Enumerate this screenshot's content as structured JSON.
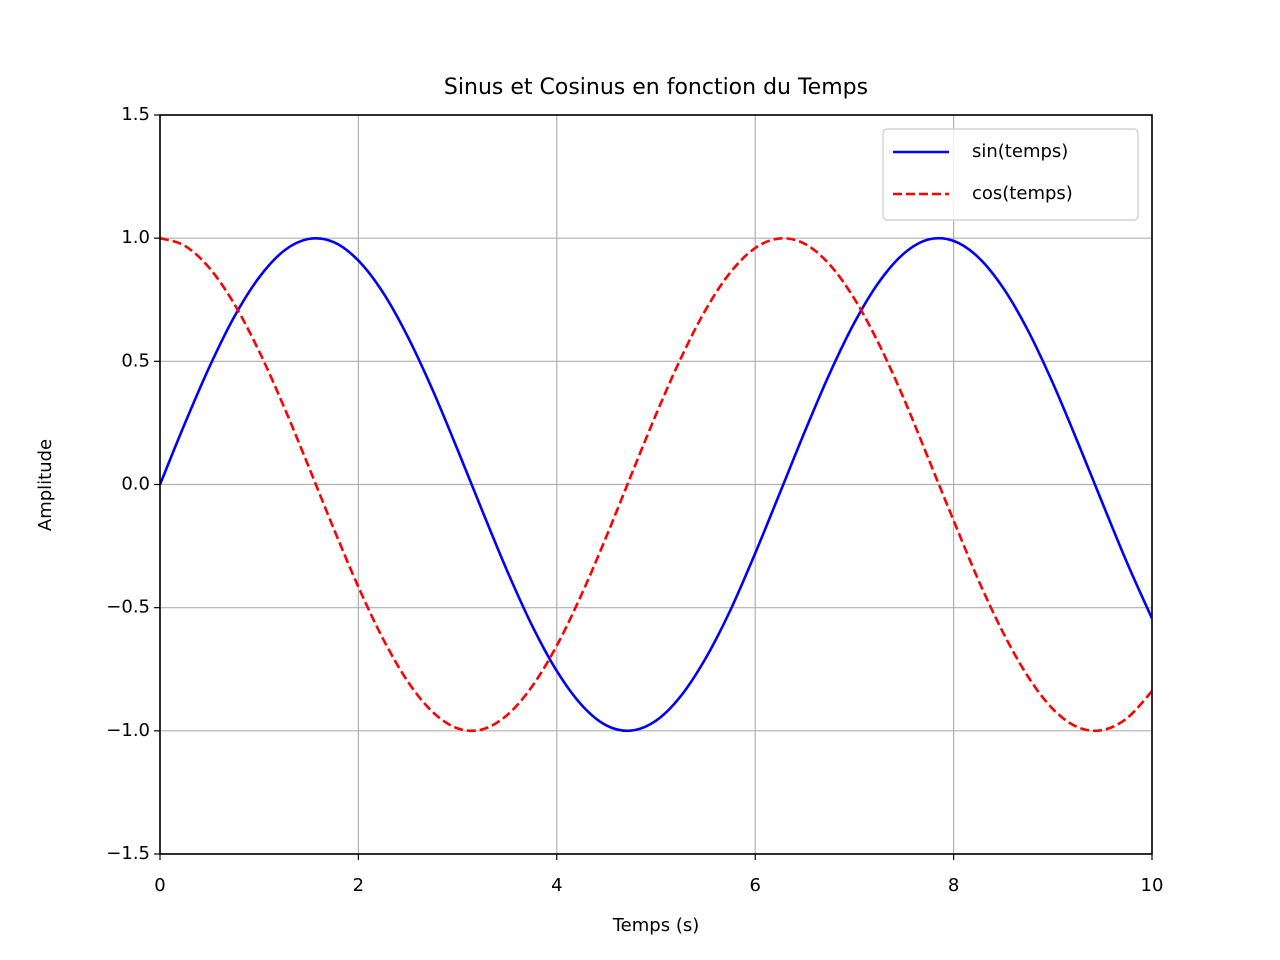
{
  "chart_data": {
    "type": "line",
    "title": "Sinus et Cosinus en fonction du Temps",
    "x_label": "Temps (s)",
    "y_label": "Amplitude",
    "x": [
      0,
      0.25,
      0.5,
      0.75,
      1,
      1.25,
      1.5,
      1.75,
      2,
      2.25,
      2.5,
      2.75,
      3,
      3.25,
      3.5,
      3.75,
      4,
      4.25,
      4.5,
      4.75,
      5,
      5.25,
      5.5,
      5.75,
      6,
      6.25,
      6.5,
      6.75,
      7,
      7.25,
      7.5,
      7.75,
      8,
      8.25,
      8.5,
      8.75,
      9,
      9.25,
      9.5,
      9.75,
      10
    ],
    "series": [
      {
        "name": "sin(temps)",
        "color": "#0000ff",
        "dash": "solid",
        "values": [
          0,
          0.247,
          0.479,
          0.682,
          0.841,
          0.949,
          0.997,
          0.984,
          0.909,
          0.778,
          0.598,
          0.382,
          0.141,
          -0.108,
          -0.351,
          -0.572,
          -0.757,
          -0.895,
          -0.978,
          -0.999,
          -0.959,
          -0.859,
          -0.706,
          -0.51,
          -0.279,
          -0.033,
          0.215,
          0.45,
          0.657,
          0.823,
          0.938,
          0.995,
          0.989,
          0.922,
          0.798,
          0.625,
          0.412,
          0.173,
          -0.075,
          -0.319,
          -0.544
        ]
      },
      {
        "name": "cos(temps)",
        "color": "#ff0000",
        "dash": "dashed",
        "values": [
          1,
          0.969,
          0.878,
          0.732,
          0.54,
          0.315,
          0.071,
          -0.178,
          -0.416,
          -0.628,
          -0.801,
          -0.924,
          -0.99,
          -0.994,
          -0.936,
          -0.82,
          -0.654,
          -0.446,
          -0.211,
          0.038,
          0.284,
          0.512,
          0.709,
          0.861,
          0.96,
          0.999,
          0.977,
          0.893,
          0.754,
          0.568,
          0.347,
          0.101,
          -0.146,
          -0.388,
          -0.602,
          -0.78,
          -0.911,
          -0.985,
          -0.997,
          -0.948,
          -0.839
        ]
      }
    ],
    "xlim": [
      0,
      10
    ],
    "xticks": [
      0,
      2,
      4,
      6,
      8,
      10
    ],
    "ylim": [
      -1.5,
      1.5
    ],
    "yticks": [
      {
        "value": -1.5,
        "label": "−1.5"
      },
      {
        "value": -1,
        "label": "−1.0"
      },
      {
        "value": -0.5,
        "label": "−0.5"
      },
      {
        "value": 0,
        "label": "0.0"
      },
      0.5,
      {
        "value": 1,
        "label": "1.0"
      },
      1.5
    ],
    "grid": true,
    "legend": "upper right"
  }
}
